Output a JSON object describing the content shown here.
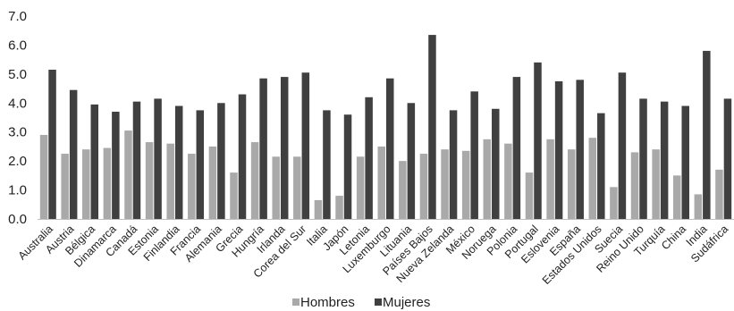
{
  "chart_data": {
    "type": "bar",
    "categories": [
      "Australia",
      "Austria",
      "Bélgica",
      "Dinamarca",
      "Canadá",
      "Estonia",
      "Finlandia",
      "Francia",
      "Alemania",
      "Grecia",
      "Hungría",
      "Irlanda",
      "Corea del Sur",
      "Italia",
      "Japón",
      "Letonia",
      "Luxemburgo",
      "Lituania",
      "Países Bajos",
      "Nueva Zelanda",
      "México",
      "Noruega",
      "Polonia",
      "Portugal",
      "Eslovenia",
      "España",
      "Estados Unidos",
      "Suecia",
      "Reino Unido",
      "Turquía",
      "China",
      "India",
      "Sudáfrica"
    ],
    "series": [
      {
        "name": "Hombres",
        "color": "#a9a9a9",
        "values": [
          2.9,
          2.25,
          2.4,
          2.45,
          3.05,
          2.65,
          2.6,
          2.25,
          2.5,
          1.6,
          2.65,
          2.15,
          2.15,
          0.65,
          0.8,
          2.15,
          2.5,
          2.0,
          2.25,
          2.4,
          2.35,
          2.75,
          2.6,
          1.6,
          2.75,
          2.4,
          2.8,
          1.1,
          2.3,
          2.4,
          1.5,
          0.85,
          1.7
        ]
      },
      {
        "name": "Mujeres",
        "color": "#404040",
        "values": [
          5.15,
          4.45,
          3.95,
          3.7,
          4.05,
          4.15,
          3.9,
          3.75,
          4.0,
          4.3,
          4.85,
          4.9,
          5.05,
          3.75,
          3.6,
          4.2,
          4.85,
          4.0,
          6.35,
          3.75,
          4.4,
          3.8,
          4.9,
          5.4,
          4.75,
          4.8,
          3.65,
          5.05,
          4.15,
          4.05,
          3.9,
          5.8,
          4.15
        ]
      }
    ],
    "ylim": [
      0,
      7
    ],
    "yticks": [
      "0.0",
      "1.0",
      "2.0",
      "3.0",
      "4.0",
      "5.0",
      "6.0",
      "7.0"
    ],
    "grid": false,
    "legend_position": "bottom"
  }
}
